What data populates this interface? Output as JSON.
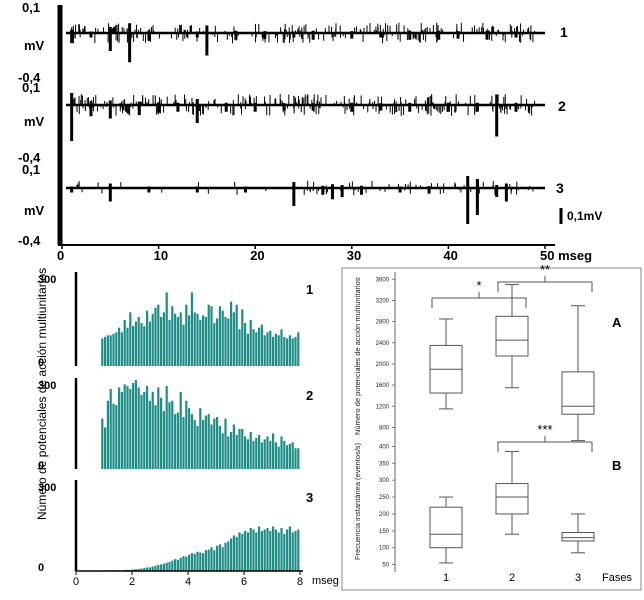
{
  "colors": {
    "ink": "#000000",
    "bar": "#1f8c86",
    "box": "#555555"
  },
  "chart_data": [
    {
      "type": "line",
      "name": "traces",
      "x_ticks": [
        "0",
        "10",
        "20",
        "30",
        "40",
        "50 mseg"
      ],
      "xlim": [
        0,
        50
      ],
      "y_top_label": "0,1",
      "y_unit_label": "mV",
      "y_bottom_label": "-0,4",
      "scale_bar_label": "0,1mV",
      "traces": [
        {
          "name": "1",
          "spikes": [
            [
              1,
              0.45
            ],
            [
              3,
              0.2
            ],
            [
              5,
              0.8
            ],
            [
              7,
              1.3
            ],
            [
              9,
              0.35
            ],
            [
              14,
              0.2
            ],
            [
              15,
              1.0
            ],
            [
              18,
              0.3
            ],
            [
              21,
              0.25
            ],
            [
              24,
              0.2
            ],
            [
              26,
              0.3
            ],
            [
              30,
              0.25
            ],
            [
              33,
              0.2
            ],
            [
              36,
              0.3
            ],
            [
              39,
              0.3
            ],
            [
              41,
              0.25
            ],
            [
              44,
              0.3
            ],
            [
              47,
              0.2
            ]
          ],
          "density": 0.9
        },
        {
          "name": "2",
          "spikes": [
            [
              1,
              1.6
            ],
            [
              3,
              0.5
            ],
            [
              5,
              0.6
            ],
            [
              8,
              0.45
            ],
            [
              10,
              0.35
            ],
            [
              12,
              0.3
            ],
            [
              14,
              0.8
            ],
            [
              17,
              0.3
            ],
            [
              20,
              0.3
            ],
            [
              23,
              0.25
            ],
            [
              26,
              0.25
            ],
            [
              30,
              0.3
            ],
            [
              33,
              0.25
            ],
            [
              36,
              0.3
            ],
            [
              40,
              0.3
            ],
            [
              43,
              0.3
            ],
            [
              45,
              1.4
            ],
            [
              47,
              0.3
            ]
          ],
          "density": 1.0
        },
        {
          "name": "3",
          "spikes": [
            [
              1,
              0.2
            ],
            [
              5,
              0.6
            ],
            [
              9,
              0.2
            ],
            [
              14,
              0.2
            ],
            [
              19,
              0.2
            ],
            [
              24,
              0.8
            ],
            [
              27,
              0.3
            ],
            [
              28,
              0.5
            ],
            [
              29,
              0.4
            ],
            [
              31,
              0.3
            ],
            [
              35,
              0.2
            ],
            [
              38,
              0.25
            ],
            [
              42,
              1.6
            ],
            [
              43,
              1.2
            ],
            [
              45,
              0.4
            ],
            [
              46,
              0.6
            ]
          ],
          "density": 0.3
        }
      ]
    },
    {
      "type": "bar",
      "name": "histograms",
      "ylabel": "Número de potenciales de acción multiunitarios",
      "x_ticks": [
        "0",
        "2",
        "4",
        "6",
        "8"
      ],
      "x_unit": "mseg",
      "xlim": [
        0,
        8
      ],
      "ylim": [
        0,
        300
      ],
      "y_top_label": "300",
      "y_zero_label": "0",
      "bin_start": 0.9,
      "bin_width": 0.1,
      "series": [
        {
          "name": "1",
          "values": [
            90,
            95,
            100,
            100,
            105,
            110,
            125,
            110,
            150,
            125,
            175,
            130,
            145,
            160,
            140,
            130,
            180,
            145,
            170,
            190,
            200,
            160,
            175,
            240,
            150,
            195,
            170,
            160,
            175,
            135,
            200,
            165,
            240,
            175,
            170,
            150,
            165,
            160,
            200,
            195,
            140,
            155,
            195,
            180,
            160,
            155,
            210,
            175,
            200,
            120,
            185,
            140,
            105,
            150,
            120,
            110,
            125,
            135,
            100,
            110,
            115,
            95,
            105,
            100,
            120,
            95,
            90,
            100,
            90,
            95,
            110
          ]
        },
        {
          "name": "2",
          "values": [
            170,
            140,
            230,
            270,
            220,
            215,
            275,
            260,
            285,
            280,
            270,
            290,
            300,
            275,
            250,
            260,
            280,
            230,
            260,
            215,
            275,
            240,
            195,
            280,
            225,
            230,
            185,
            190,
            260,
            175,
            230,
            205,
            185,
            165,
            145,
            205,
            165,
            180,
            185,
            150,
            170,
            175,
            145,
            120,
            170,
            110,
            125,
            150,
            115,
            135,
            135,
            110,
            100,
            125,
            95,
            105,
            115,
            90,
            100,
            110,
            95,
            120,
            90,
            75,
            110,
            95,
            80,
            85,
            90,
            70,
            70
          ]
        },
        {
          "name": "3",
          "values": [
            2,
            1,
            2,
            2,
            2,
            3,
            2,
            2,
            3,
            4,
            3,
            5,
            6,
            7,
            8,
            10,
            12,
            12,
            15,
            18,
            20,
            22,
            25,
            28,
            30,
            35,
            40,
            38,
            45,
            50,
            48,
            55,
            60,
            58,
            65,
            62,
            60,
            70,
            72,
            80,
            70,
            85,
            90,
            80,
            95,
            100,
            110,
            120,
            115,
            130,
            125,
            135,
            130,
            145,
            140,
            130,
            150,
            135,
            140,
            145,
            135,
            150,
            140,
            130,
            145,
            125,
            140,
            150,
            130,
            135,
            140
          ]
        }
      ]
    },
    {
      "type": "box",
      "name": "A",
      "ylabel": "Número de potenciales de acción multiunitarios",
      "yticks": [
        800,
        1200,
        1600,
        2000,
        2400,
        2800,
        3200,
        3600
      ],
      "ylim": [
        600,
        3700
      ],
      "categories": [
        "1",
        "2",
        "3"
      ],
      "boxes": [
        {
          "min": 1150,
          "q1": 1450,
          "median": 1900,
          "q3": 2350,
          "max": 2850
        },
        {
          "min": 1550,
          "q1": 2150,
          "median": 2450,
          "q3": 2900,
          "max": 3500
        },
        {
          "min": 550,
          "q1": 1050,
          "median": 1200,
          "q3": 1850,
          "max": 3100
        }
      ],
      "significance": [
        {
          "pair": [
            1,
            2
          ],
          "label": "*"
        },
        {
          "pair": [
            2,
            3
          ],
          "label": "**"
        }
      ]
    },
    {
      "type": "box",
      "name": "B",
      "ylabel": "Frecuencia instantánea (eventos/s)",
      "yticks": [
        50,
        100,
        150,
        200,
        250,
        300,
        350,
        400
      ],
      "ylim": [
        40,
        410
      ],
      "categories": [
        "1",
        "2",
        "3"
      ],
      "xlabel": "Fases",
      "boxes": [
        {
          "min": 55,
          "q1": 100,
          "median": 140,
          "q3": 220,
          "max": 250
        },
        {
          "min": 140,
          "q1": 200,
          "median": 250,
          "q3": 290,
          "max": 385
        },
        {
          "min": 85,
          "q1": 120,
          "median": 130,
          "q3": 145,
          "max": 200
        }
      ],
      "significance": [
        {
          "pair": [
            2,
            3
          ],
          "label": "***"
        }
      ]
    }
  ]
}
